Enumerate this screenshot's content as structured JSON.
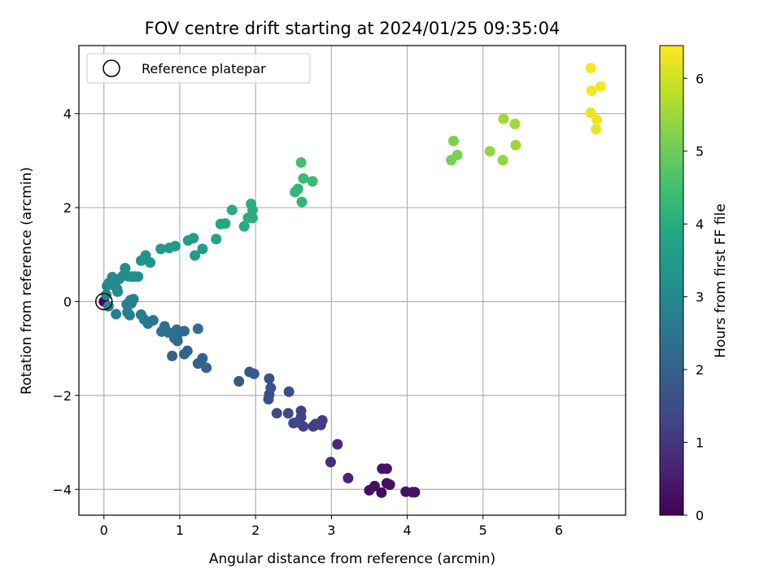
{
  "chart_data": {
    "type": "scatter",
    "title": "FOV centre drift starting at 2024/01/25 09:35:04",
    "xlabel": "Angular distance from reference (arcmin)",
    "ylabel": "Rotation from reference (arcmin)",
    "xlim": [
      -0.33,
      6.88
    ],
    "ylim": [
      -4.55,
      5.45
    ],
    "xticks": [
      0,
      1,
      2,
      3,
      4,
      5,
      6
    ],
    "xtick_labels": [
      "0",
      "1",
      "2",
      "3",
      "4",
      "5",
      "6"
    ],
    "yticks": [
      -4,
      -2,
      0,
      2,
      4
    ],
    "ytick_labels": [
      "−4",
      "−2",
      "0",
      "2",
      "4"
    ],
    "grid": true,
    "legend": {
      "placement": "top-left",
      "entries": [
        "Reference platepar"
      ]
    },
    "colorbar": {
      "label": "Hours from first FF file",
      "colormap": "viridis",
      "range": [
        0,
        6.45
      ],
      "ticks": [
        0,
        1,
        2,
        3,
        4,
        5,
        6
      ],
      "tick_labels": [
        "0",
        "1",
        "2",
        "3",
        "4",
        "5",
        "6"
      ]
    },
    "reference_point": {
      "x": 0,
      "y": 0,
      "label": "Reference platepar"
    },
    "points": [
      {
        "x": 0,
        "y": 0,
        "h": 0.05
      },
      {
        "x": 3.5,
        "y": -4.02,
        "h": 0.25
      },
      {
        "x": 3.57,
        "y": -3.93,
        "h": 0.3
      },
      {
        "x": 3.66,
        "y": -4.07,
        "h": 0.2
      },
      {
        "x": 3.67,
        "y": -3.56,
        "h": 0.35
      },
      {
        "x": 3.73,
        "y": -3.56,
        "h": 0.4
      },
      {
        "x": 3.73,
        "y": -3.87,
        "h": 0.3
      },
      {
        "x": 3.77,
        "y": -3.9,
        "h": 0.25
      },
      {
        "x": 3.98,
        "y": -4.05,
        "h": 0.3
      },
      {
        "x": 4.07,
        "y": -4.06,
        "h": 0.3
      },
      {
        "x": 4.1,
        "y": -4.06,
        "h": 0.35
      },
      {
        "x": 3.22,
        "y": -3.76,
        "h": 0.65
      },
      {
        "x": 3.08,
        "y": -3.04,
        "h": 0.75
      },
      {
        "x": 2.99,
        "y": -3.42,
        "h": 0.8
      },
      {
        "x": 2.88,
        "y": -2.53,
        "h": 1.1
      },
      {
        "x": 2.86,
        "y": -2.63,
        "h": 1.15
      },
      {
        "x": 2.79,
        "y": -2.61,
        "h": 1.2
      },
      {
        "x": 2.76,
        "y": -2.66,
        "h": 1.2
      },
      {
        "x": 2.63,
        "y": -2.66,
        "h": 1.25
      },
      {
        "x": 2.6,
        "y": -2.46,
        "h": 1.3
      },
      {
        "x": 2.6,
        "y": -2.33,
        "h": 1.3
      },
      {
        "x": 2.55,
        "y": -2.57,
        "h": 1.35
      },
      {
        "x": 2.5,
        "y": -2.59,
        "h": 1.35
      },
      {
        "x": 2.44,
        "y": -1.92,
        "h": 1.5
      },
      {
        "x": 2.43,
        "y": -2.38,
        "h": 1.4
      },
      {
        "x": 2.28,
        "y": -2.38,
        "h": 1.45
      },
      {
        "x": 2.2,
        "y": -1.84,
        "h": 1.6
      },
      {
        "x": 2.18,
        "y": -1.64,
        "h": 1.65
      },
      {
        "x": 2.18,
        "y": -1.98,
        "h": 1.55
      },
      {
        "x": 2.17,
        "y": -2.08,
        "h": 1.55
      },
      {
        "x": 1.98,
        "y": -1.54,
        "h": 1.75
      },
      {
        "x": 1.92,
        "y": -1.5,
        "h": 1.8
      },
      {
        "x": 1.78,
        "y": -1.7,
        "h": 1.75
      },
      {
        "x": 1.35,
        "y": -1.41,
        "h": 2.0
      },
      {
        "x": 1.3,
        "y": -1.21,
        "h": 2.05
      },
      {
        "x": 1.24,
        "y": -1.32,
        "h": 2.05
      },
      {
        "x": 1.24,
        "y": -0.58,
        "h": 2.25
      },
      {
        "x": 1.1,
        "y": -1.05,
        "h": 2.1
      },
      {
        "x": 1.06,
        "y": -0.63,
        "h": 2.3
      },
      {
        "x": 1.06,
        "y": -1.12,
        "h": 2.1
      },
      {
        "x": 0.97,
        "y": -0.84,
        "h": 2.2
      },
      {
        "x": 0.97,
        "y": -0.71,
        "h": 2.25
      },
      {
        "x": 0.96,
        "y": -0.6,
        "h": 2.3
      },
      {
        "x": 0.93,
        "y": -0.78,
        "h": 2.25
      },
      {
        "x": 0.92,
        "y": -0.7,
        "h": 2.3
      },
      {
        "x": 0.9,
        "y": -1.16,
        "h": 2.1
      },
      {
        "x": 0.85,
        "y": -0.66,
        "h": 2.35
      },
      {
        "x": 0.8,
        "y": -0.53,
        "h": 2.4
      },
      {
        "x": 0.76,
        "y": -0.64,
        "h": 2.4
      },
      {
        "x": 0.65,
        "y": -0.4,
        "h": 2.5
      },
      {
        "x": 0.58,
        "y": -0.47,
        "h": 2.5
      },
      {
        "x": 0.53,
        "y": -0.38,
        "h": 2.55
      },
      {
        "x": 0.49,
        "y": -0.28,
        "h": 2.6
      },
      {
        "x": 0.36,
        "y": -0.04,
        "h": 2.75
      },
      {
        "x": 0.34,
        "y": -0.29,
        "h": 2.7
      },
      {
        "x": 0.31,
        "y": -0.23,
        "h": 2.7
      },
      {
        "x": 0.3,
        "y": -0.06,
        "h": 2.8
      },
      {
        "x": 0.16,
        "y": -0.27,
        "h": 2.8
      },
      {
        "x": 0.06,
        "y": -0.1,
        "h": 2.9
      },
      {
        "x": 0.03,
        "y": 0.14,
        "h": 2.95
      },
      {
        "x": 0.04,
        "y": 0.33,
        "h": 3.0
      },
      {
        "x": 0.07,
        "y": 0.4,
        "h": 3.05
      },
      {
        "x": 0.12,
        "y": 0.45,
        "h": 3.05
      },
      {
        "x": 0.15,
        "y": 0.33,
        "h": 3.05
      },
      {
        "x": 0.18,
        "y": 0.21,
        "h": 3.05
      },
      {
        "x": 0.17,
        "y": 0.27,
        "h": 3.05
      },
      {
        "x": 0.11,
        "y": 0.52,
        "h": 3.1
      },
      {
        "x": 0.2,
        "y": 0.48,
        "h": 3.1
      },
      {
        "x": 0.25,
        "y": 0.55,
        "h": 3.1
      },
      {
        "x": 0.28,
        "y": 0.71,
        "h": 3.15
      },
      {
        "x": 0.31,
        "y": 0.54,
        "h": 3.15
      },
      {
        "x": 0.36,
        "y": 0.53,
        "h": 3.15
      },
      {
        "x": 0.4,
        "y": 0.53,
        "h": 3.15
      },
      {
        "x": 0.45,
        "y": 0.53,
        "h": 3.2
      },
      {
        "x": 0.35,
        "y": 0.03,
        "h": 2.8
      },
      {
        "x": 0.39,
        "y": 0.05,
        "h": 2.8
      },
      {
        "x": 0.49,
        "y": 0.87,
        "h": 3.3
      },
      {
        "x": 0.55,
        "y": 0.98,
        "h": 3.35
      },
      {
        "x": 0.61,
        "y": 0.83,
        "h": 3.35
      },
      {
        "x": 0.75,
        "y": 1.12,
        "h": 3.45
      },
      {
        "x": 0.86,
        "y": 1.14,
        "h": 3.5
      },
      {
        "x": 0.94,
        "y": 1.18,
        "h": 3.5
      },
      {
        "x": 1.11,
        "y": 1.3,
        "h": 3.6
      },
      {
        "x": 1.18,
        "y": 1.35,
        "h": 3.6
      },
      {
        "x": 1.2,
        "y": 0.98,
        "h": 3.55
      },
      {
        "x": 1.3,
        "y": 1.12,
        "h": 3.6
      },
      {
        "x": 1.48,
        "y": 1.33,
        "h": 3.7
      },
      {
        "x": 1.54,
        "y": 1.65,
        "h": 3.8
      },
      {
        "x": 1.6,
        "y": 1.66,
        "h": 3.85
      },
      {
        "x": 1.69,
        "y": 1.95,
        "h": 3.95
      },
      {
        "x": 1.85,
        "y": 1.6,
        "h": 3.95
      },
      {
        "x": 1.9,
        "y": 1.78,
        "h": 4.0
      },
      {
        "x": 1.94,
        "y": 2.08,
        "h": 4.05
      },
      {
        "x": 1.96,
        "y": 1.95,
        "h": 4.05
      },
      {
        "x": 1.96,
        "y": 1.78,
        "h": 4.05
      },
      {
        "x": 2.52,
        "y": 2.33,
        "h": 4.25
      },
      {
        "x": 2.56,
        "y": 2.4,
        "h": 4.25
      },
      {
        "x": 2.6,
        "y": 2.96,
        "h": 4.5
      },
      {
        "x": 2.61,
        "y": 2.12,
        "h": 4.2
      },
      {
        "x": 2.63,
        "y": 2.62,
        "h": 4.35
      },
      {
        "x": 2.75,
        "y": 2.56,
        "h": 4.35
      },
      {
        "x": 4.58,
        "y": 3.01,
        "h": 5.1
      },
      {
        "x": 4.61,
        "y": 3.42,
        "h": 5.15
      },
      {
        "x": 4.66,
        "y": 3.12,
        "h": 5.15
      },
      {
        "x": 5.09,
        "y": 3.2,
        "h": 5.4
      },
      {
        "x": 5.26,
        "y": 3.01,
        "h": 5.4
      },
      {
        "x": 5.27,
        "y": 3.89,
        "h": 5.55
      },
      {
        "x": 5.42,
        "y": 3.78,
        "h": 5.55
      },
      {
        "x": 5.43,
        "y": 3.33,
        "h": 5.5
      },
      {
        "x": 6.42,
        "y": 4.97,
        "h": 6.4
      },
      {
        "x": 6.43,
        "y": 4.49,
        "h": 6.35
      },
      {
        "x": 6.42,
        "y": 4.02,
        "h": 6.3
      },
      {
        "x": 6.5,
        "y": 3.87,
        "h": 6.3
      },
      {
        "x": 6.49,
        "y": 3.67,
        "h": 6.25
      },
      {
        "x": 6.55,
        "y": 4.58,
        "h": 6.4
      }
    ]
  }
}
